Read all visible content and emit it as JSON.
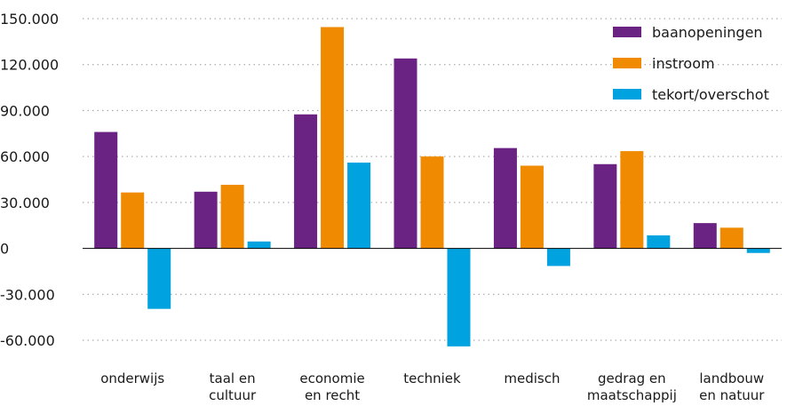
{
  "chart_data": {
    "type": "bar",
    "title": "",
    "xlabel": "",
    "ylabel": "",
    "ylim": [
      -60000,
      150000
    ],
    "yticks": [
      150000,
      120000,
      90000,
      60000,
      30000,
      0,
      -30000,
      -60000
    ],
    "ytick_labels": [
      "150.000",
      "120.000",
      "90.000",
      "60.000",
      "30.000",
      "0",
      "-30.000",
      "-60.000"
    ],
    "grid": "horizontal dotted",
    "legend_position": "top-right",
    "categories": [
      [
        "onderwijs"
      ],
      [
        "taal en",
        "cultuur"
      ],
      [
        "economie",
        "en recht"
      ],
      [
        "techniek"
      ],
      [
        "medisch"
      ],
      [
        "gedrag en",
        "maatschappij"
      ],
      [
        "landbouw",
        "en natuur"
      ]
    ],
    "series": [
      {
        "name": "baanopeningen",
        "color": "#6b2383",
        "values": [
          76000,
          37000,
          87500,
          124000,
          65500,
          55000,
          16500
        ]
      },
      {
        "name": "instroom",
        "color": "#f08a00",
        "values": [
          36500,
          41500,
          144500,
          60000,
          54000,
          63500,
          13500
        ]
      },
      {
        "name": "tekort/overschot",
        "color": "#00a3e0",
        "values": [
          -39500,
          4500,
          56000,
          -64000,
          -11500,
          8500,
          -3000
        ]
      }
    ]
  }
}
